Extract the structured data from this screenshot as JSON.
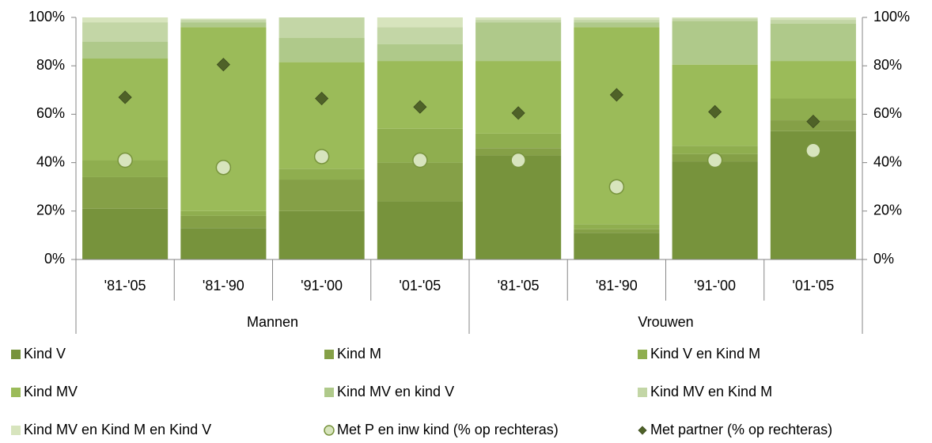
{
  "chart_data": {
    "type": "bar",
    "stacked": true,
    "categories": [
      "'81-'05",
      "'81-'90",
      "'91-'00",
      "'01-'05",
      "'81-'05",
      "'81-'90",
      "'91-'00",
      "'01-'05"
    ],
    "groups": [
      "Mannen",
      "Vrouwen"
    ],
    "series": [
      {
        "name": "Kind V",
        "color": "#77933c",
        "values": [
          21,
          13,
          20,
          24,
          43,
          11,
          40.5,
          53
        ]
      },
      {
        "name": "Kind M",
        "color": "#85a047",
        "values": [
          13,
          5,
          13,
          16,
          3,
          1.5,
          3,
          4.5
        ]
      },
      {
        "name": "Kind V en Kind M",
        "color": "#8fae4f",
        "values": [
          7,
          2,
          4.5,
          14,
          6,
          2,
          3.5,
          9
        ]
      },
      {
        "name": "Kind MV",
        "color": "#9bbb59",
        "values": [
          42,
          76,
          44,
          28,
          30,
          81.5,
          33.5,
          15.5
        ]
      },
      {
        "name": "Kind MV en kind V",
        "color": "#afc98a",
        "values": [
          7,
          2,
          10,
          7,
          16,
          2,
          18,
          15.5
        ]
      },
      {
        "name": "Kind MV en Kind M",
        "color": "#c3d6a6",
        "values": [
          8,
          1,
          8.5,
          7,
          1,
          1,
          1,
          1.5
        ]
      },
      {
        "name": "Kind MV en Kind M en Kind V",
        "color": "#d7e4bd",
        "values": [
          2,
          0.5,
          0,
          4,
          1,
          1,
          0.5,
          1
        ]
      },
      {
        "name": "Met P en inw kind (% op rechteras)",
        "type": "circle",
        "axis": "y2",
        "color": "#d7e4bd",
        "values": [
          41,
          38,
          42.5,
          41,
          41,
          30,
          41,
          45
        ]
      },
      {
        "name": "Met partner (% op rechteras)",
        "type": "diamond",
        "axis": "y2",
        "color": "#4f6228",
        "values": [
          67,
          80.5,
          66.5,
          63,
          60.5,
          68,
          61,
          57
        ]
      }
    ],
    "ylim": [
      0,
      100
    ],
    "yticks": [
      {
        "value": 0,
        "label": "0%"
      },
      {
        "value": 20,
        "label": "20%"
      },
      {
        "value": 40,
        "label": "40%"
      },
      {
        "value": 60,
        "label": "60%"
      },
      {
        "value": 80,
        "label": "80%"
      },
      {
        "value": 100,
        "label": "100%"
      }
    ],
    "y2lim": [
      0,
      100
    ],
    "y2ticks": [
      {
        "value": 0,
        "label": "0%"
      },
      {
        "value": 20,
        "label": "20%"
      },
      {
        "value": 40,
        "label": "40%"
      },
      {
        "value": 60,
        "label": "60%"
      },
      {
        "value": 80,
        "label": "80%"
      },
      {
        "value": 100,
        "label": "100%"
      }
    ],
    "legend": "bottom"
  }
}
